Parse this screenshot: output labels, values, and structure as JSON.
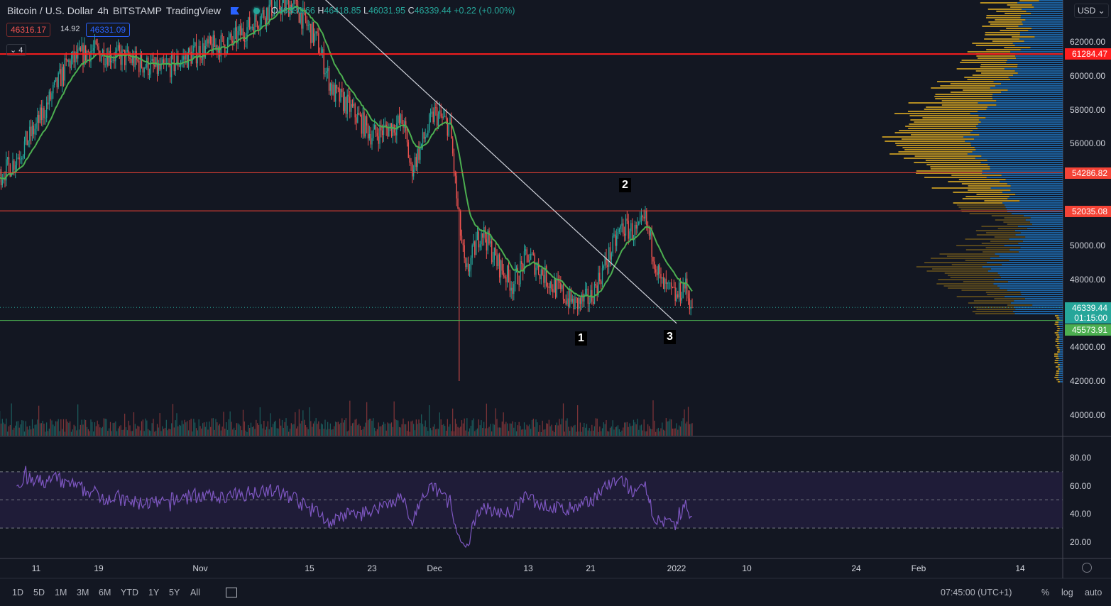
{
  "header": {
    "symbol": "Bitcoin / U.S. Dollar",
    "interval": "4h",
    "exchange": "BITSTAMP",
    "source": "TradingView",
    "o_label": "O",
    "o": "46330.66",
    "h_label": "H",
    "h": "46418.85",
    "l_label": "L",
    "l": "46031.95",
    "c_label": "C",
    "c": "46339.44",
    "change": "+0.22 (+0.00%)",
    "bid": "46316.17",
    "spread": "14.92",
    "ask": "46331.09",
    "indicators_toggle": "4"
  },
  "currency": "USD",
  "colors": {
    "up": "#26a69a",
    "down": "#ef5350",
    "ma": "#4caf50",
    "rsi": "#7e57c2",
    "resistance": "#ff1e1e",
    "support": "#4caf50"
  },
  "price_axis": {
    "ticks": [
      "62000.00",
      "60000.00",
      "58000.00",
      "56000.00",
      "50000.00",
      "48000.00",
      "44000.00",
      "42000.00",
      "40000.00"
    ],
    "labels": [
      {
        "value": "61284.47",
        "color": "#ff1e1e"
      },
      {
        "value": "54286.82",
        "color": "#f44336"
      },
      {
        "value": "52035.08",
        "color": "#f44336"
      }
    ],
    "last_price": "46339.44",
    "countdown": "01:15:00",
    "support_label": "45573.91"
  },
  "rsi_axis": {
    "ticks": [
      "80.00",
      "60.00",
      "40.00",
      "20.00"
    ]
  },
  "time_axis": {
    "ticks": [
      {
        "label": "11",
        "date": "2021-10-11"
      },
      {
        "label": "19",
        "date": "2021-10-19"
      },
      {
        "label": "Nov",
        "date": "2021-11-01"
      },
      {
        "label": "15",
        "date": "2021-11-15"
      },
      {
        "label": "23",
        "date": "2021-11-23"
      },
      {
        "label": "Dec",
        "date": "2021-12-01"
      },
      {
        "label": "13",
        "date": "2021-12-13"
      },
      {
        "label": "21",
        "date": "2021-12-21"
      },
      {
        "label": "2022",
        "date": "2022-01-01"
      },
      {
        "label": "10",
        "date": "2022-01-10"
      },
      {
        "label": "24",
        "date": "2022-01-24"
      },
      {
        "label": "Feb",
        "date": "2022-02-01"
      },
      {
        "label": "14",
        "date": "2022-02-14"
      }
    ]
  },
  "annotations": {
    "point1": "1",
    "point2": "2",
    "point3": "3"
  },
  "bottom_bar": {
    "ranges": [
      "1D",
      "5D",
      "1M",
      "3M",
      "6M",
      "YTD",
      "1Y",
      "5Y",
      "All"
    ],
    "time": "07:45:00 (UTC+1)",
    "percent": "%",
    "log": "log",
    "auto": "auto"
  },
  "chart_data": {
    "type": "candlestick",
    "title": "Bitcoin / U.S. Dollar 4h BITSTAMP",
    "ylim": [
      39000,
      64500
    ],
    "waypoints": [
      [
        "2021-10-06",
        54000
      ],
      [
        "2021-10-08",
        54850
      ],
      [
        "2021-10-11",
        57000
      ],
      [
        "2021-10-15",
        60700
      ],
      [
        "2021-10-18",
        61500
      ],
      [
        "2021-10-22",
        61100
      ],
      [
        "2021-10-27",
        60300
      ],
      [
        "2021-11-01",
        61500
      ],
      [
        "2021-11-05",
        62000
      ],
      [
        "2021-11-10",
        64000
      ],
      [
        "2021-11-13",
        64200
      ],
      [
        "2021-11-16",
        62000
      ],
      [
        "2021-11-18",
        59000
      ],
      [
        "2021-11-20",
        58200
      ],
      [
        "2021-11-23",
        56500
      ],
      [
        "2021-11-27",
        57300
      ],
      [
        "2021-11-28",
        54400
      ],
      [
        "2021-12-01",
        57800
      ],
      [
        "2021-12-03",
        57000
      ],
      [
        "2021-12-04",
        52000
      ],
      [
        "2021-12-05",
        48200
      ],
      [
        "2021-12-07",
        51000
      ],
      [
        "2021-12-09",
        49000
      ],
      [
        "2021-12-11",
        47700
      ],
      [
        "2021-12-13",
        49400
      ],
      [
        "2021-12-16",
        47700
      ],
      [
        "2021-12-19",
        46500
      ],
      [
        "2021-12-21",
        46900
      ],
      [
        "2021-12-23",
        49000
      ],
      [
        "2021-12-25",
        51100
      ],
      [
        "2021-12-27",
        50700
      ],
      [
        "2021-12-28",
        51500
      ],
      [
        "2021-12-30",
        47700
      ],
      [
        "2022-01-01",
        46900
      ],
      [
        "2022-01-02",
        47700
      ],
      [
        "2022-01-03",
        46339
      ]
    ],
    "flash_crash_low": {
      "date": "2021-12-04",
      "value": 42000
    },
    "horizontal_levels": [
      61284.47,
      54286.82,
      52035.08,
      45573.91
    ],
    "trendline": [
      [
        "2021-11-17",
        64500
      ],
      [
        "2022-01-01",
        45400
      ]
    ],
    "rsi": {
      "levels": [
        70,
        50,
        30
      ],
      "ylim": [
        15,
        85
      ]
    }
  }
}
